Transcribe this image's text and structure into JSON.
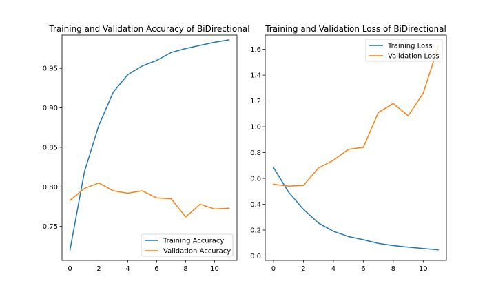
{
  "chart_data": [
    {
      "type": "line",
      "title": "Training and Validation Accuracy of BiDirectional",
      "xlabel": "",
      "ylabel": "",
      "x": [
        0,
        1,
        2,
        3,
        4,
        5,
        6,
        7,
        8,
        9,
        10,
        11
      ],
      "xlim": [
        -0.55,
        11.55
      ],
      "ylim": [
        0.707,
        0.992
      ],
      "xticks": [
        0,
        2,
        4,
        6,
        8,
        10
      ],
      "yticks": [
        0.75,
        0.8,
        0.85,
        0.9,
        0.95
      ],
      "ytick_labels": [
        "0.75",
        "0.80",
        "0.85",
        "0.90",
        "0.95"
      ],
      "grid": false,
      "legend_position": "lower-right",
      "series": [
        {
          "name": "Training Accuracy",
          "color": "#1f77b4",
          "values": [
            0.72,
            0.819,
            0.878,
            0.92,
            0.942,
            0.953,
            0.96,
            0.97,
            0.975,
            0.979,
            0.983,
            0.986
          ]
        },
        {
          "name": "Validation Accuracy",
          "color": "#ff7f0e",
          "values": [
            0.783,
            0.798,
            0.805,
            0.795,
            0.792,
            0.795,
            0.786,
            0.785,
            0.762,
            0.778,
            0.772,
            0.773
          ]
        }
      ]
    },
    {
      "type": "line",
      "title": "Training and Validation Loss of BiDirectional",
      "xlabel": "",
      "ylabel": "",
      "x": [
        0,
        1,
        2,
        3,
        4,
        5,
        6,
        7,
        8,
        9,
        10,
        11
      ],
      "xlim": [
        -0.55,
        11.55
      ],
      "ylim": [
        -0.035,
        1.71
      ],
      "xticks": [
        0,
        2,
        4,
        6,
        8,
        10
      ],
      "yticks": [
        0.0,
        0.2,
        0.4,
        0.6,
        0.8,
        1.0,
        1.2,
        1.4,
        1.6
      ],
      "ytick_labels": [
        "0.0",
        "0.2",
        "0.4",
        "0.6",
        "0.8",
        "1.0",
        "1.2",
        "1.4",
        "1.6"
      ],
      "grid": false,
      "legend_position": "upper-right",
      "series": [
        {
          "name": "Training Loss",
          "color": "#1f77b4",
          "values": [
            0.685,
            0.495,
            0.36,
            0.255,
            0.19,
            0.15,
            0.125,
            0.097,
            0.08,
            0.068,
            0.057,
            0.047
          ]
        },
        {
          "name": "Validation Loss",
          "color": "#ff7f0e",
          "values": [
            0.555,
            0.54,
            0.545,
            0.68,
            0.74,
            0.825,
            0.84,
            1.11,
            1.18,
            1.085,
            1.26,
            1.62
          ]
        }
      ]
    }
  ]
}
